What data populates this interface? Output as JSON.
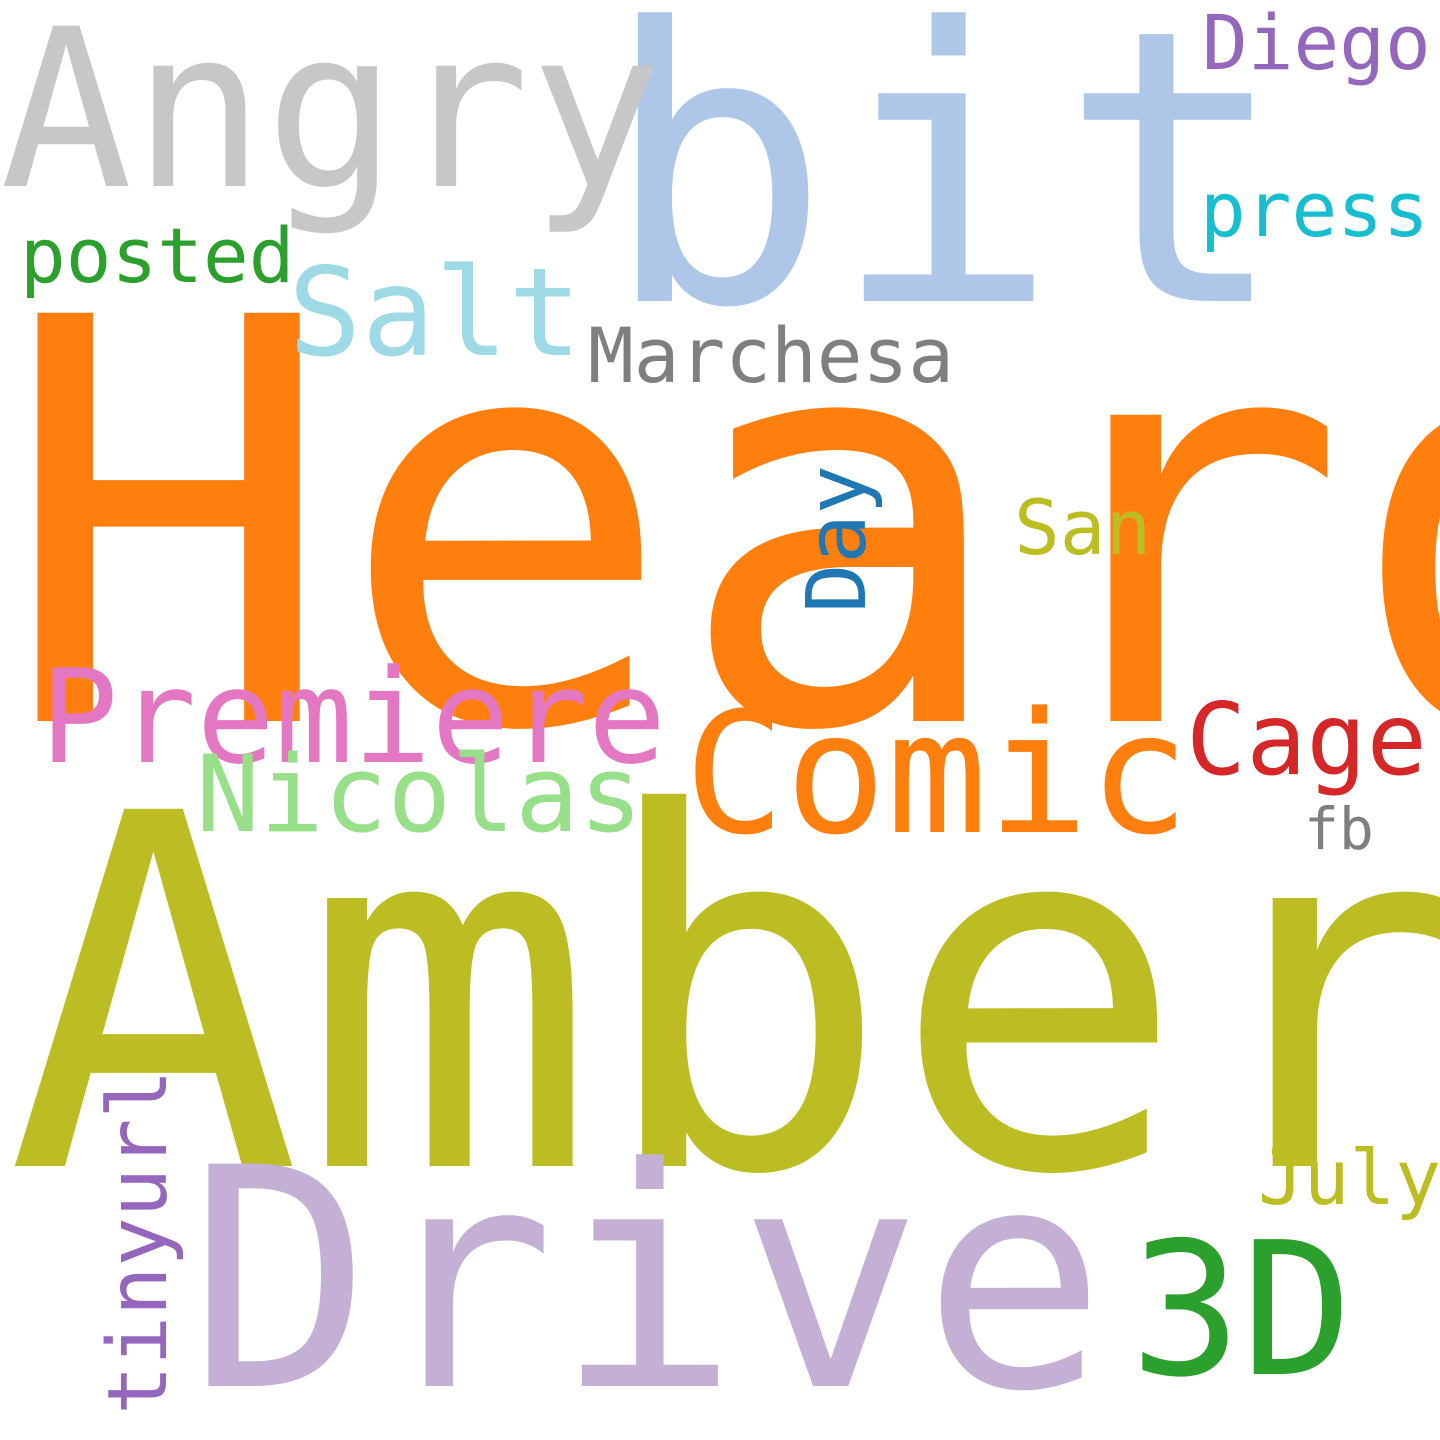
{
  "words": {
    "heard": {
      "text": "Heard",
      "color": "#ff7f0e"
    },
    "amber": {
      "text": "Amber",
      "color": "#bcbd22"
    },
    "bit": {
      "text": "bit",
      "color": "#aec7e8"
    },
    "drive": {
      "text": "Drive",
      "color": "#c5b0d5"
    },
    "angry": {
      "text": "Angry",
      "color": "#c7c7c7"
    },
    "three_d": {
      "text": "3D",
      "color": "#2ca02c"
    },
    "comic": {
      "text": "Comic",
      "color": "#ff7f0e"
    },
    "premiere": {
      "text": "Premiere",
      "color": "#e377c2"
    },
    "salt": {
      "text": "Salt",
      "color": "#9edae5"
    },
    "nicolas": {
      "text": "Nicolas",
      "color": "#98df8a"
    },
    "cage": {
      "text": "Cage",
      "color": "#d62728"
    },
    "marchesa": {
      "text": "Marchesa",
      "color": "#7f7f7f"
    },
    "diego": {
      "text": "Diego",
      "color": "#9467bd"
    },
    "press": {
      "text": "press",
      "color": "#17becf"
    },
    "posted": {
      "text": "posted",
      "color": "#2ca02c"
    },
    "san": {
      "text": "San",
      "color": "#bcbd22"
    },
    "july": {
      "text": "July",
      "color": "#bcbd22"
    },
    "fb": {
      "text": "fb",
      "color": "#7f7f7f"
    },
    "day": {
      "text": "Day",
      "color": "#1f77b4"
    },
    "tinyurl": {
      "text": "tinyurl",
      "color": "#9467bd"
    }
  }
}
